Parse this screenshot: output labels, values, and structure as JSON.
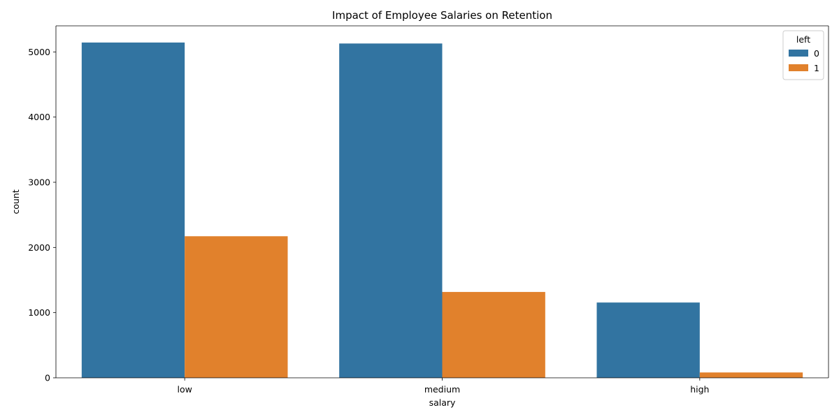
{
  "chart_data": {
    "type": "bar",
    "title": "Impact of Employee Salaries on Retention",
    "xlabel": "salary",
    "ylabel": "count",
    "categories": [
      "low",
      "medium",
      "high"
    ],
    "series": [
      {
        "name": "0",
        "values": [
          5144,
          5129,
          1155
        ],
        "color": "#3274a1"
      },
      {
        "name": "1",
        "values": [
          2172,
          1317,
          82
        ],
        "color": "#e1812c"
      }
    ],
    "ylim": [
      0,
      5400
    ],
    "yticks": [
      0,
      1000,
      2000,
      3000,
      4000,
      5000
    ],
    "legend": {
      "title": "left",
      "placement": "top-right"
    },
    "grid": false
  }
}
